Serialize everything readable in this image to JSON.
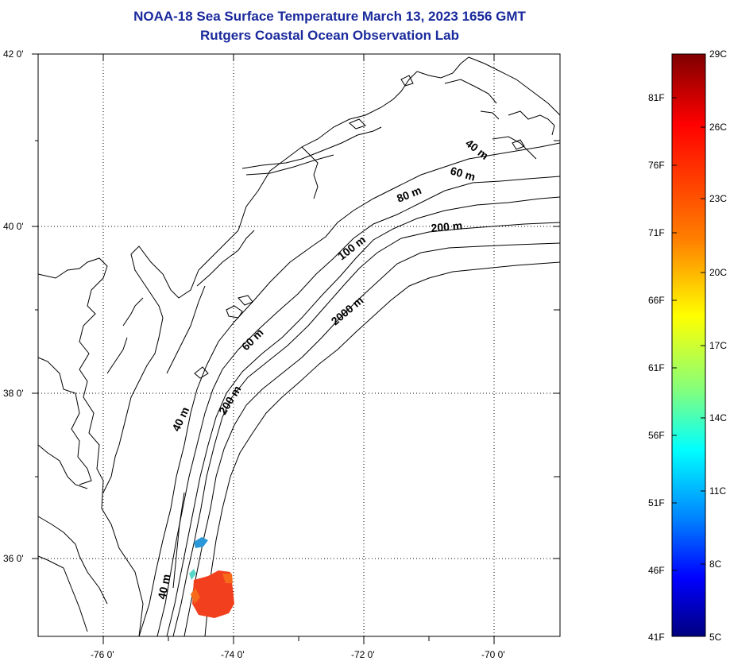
{
  "header": {
    "title": "NOAA-18 Sea Surface Temperature March 13, 2023 1656 GMT",
    "subtitle": "Rutgers Coastal Ocean Observation Lab"
  },
  "map": {
    "lat_labels": [
      "42 0'",
      "40 0'",
      "38 0'",
      "36 0'"
    ],
    "lon_labels": [
      "-76 0'",
      "-74 0'",
      "-72 0'",
      "-70 0'"
    ],
    "contour_labels": [
      "40 m",
      "60 m",
      "80 m",
      "200 m",
      "100 m",
      "2000 m",
      "60 m",
      "40 m",
      "200 m",
      "40 m"
    ],
    "sst_patch_colors": {
      "warm": "#f2401e",
      "warm_edge": "#f76a1a",
      "cool": "#2a98d8",
      "cool2": "#58d6c8"
    }
  },
  "colorbar": {
    "celsius_labels": [
      "29C",
      "26C",
      "23C",
      "20C",
      "17C",
      "14C",
      "11C",
      "8C",
      "5C"
    ],
    "fahrenheit_labels": [
      "81F",
      "76F",
      "71F",
      "66F",
      "61F",
      "56F",
      "51F",
      "46F",
      "41F"
    ],
    "stops": [
      "#7f0000",
      "#ff0000",
      "#ff7f00",
      "#ffff00",
      "#7fff7f",
      "#00ffff",
      "#007fff",
      "#0000ff",
      "#00007f"
    ]
  }
}
